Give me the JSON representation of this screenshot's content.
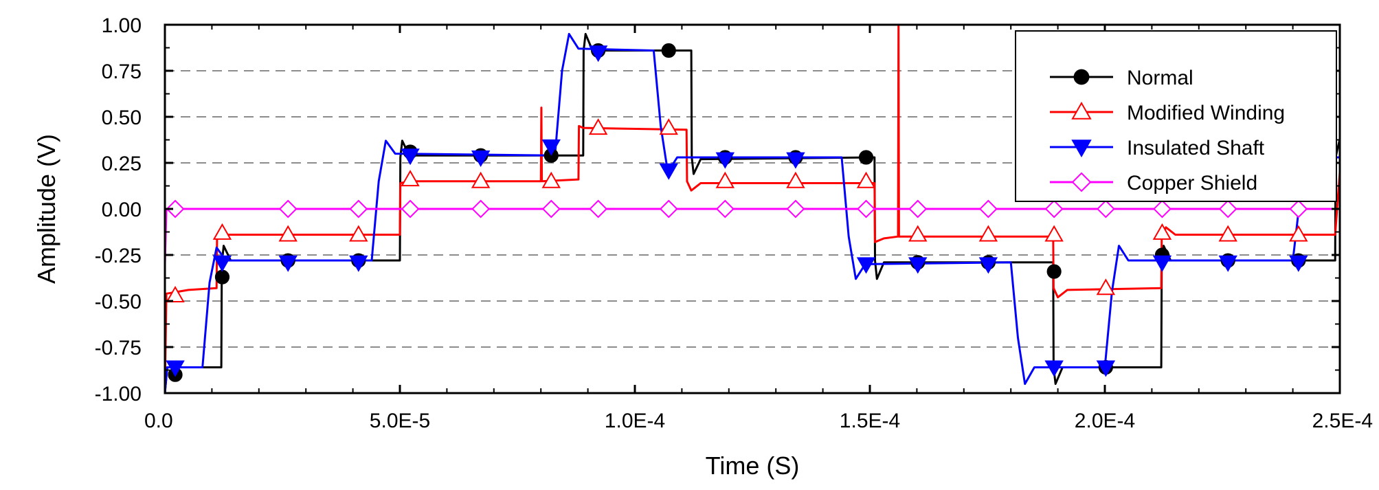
{
  "chart_data": {
    "type": "line",
    "title": "",
    "xlabel": "Time (S)",
    "ylabel": "Amplitude (V)",
    "xlim": [
      0,
      0.00025
    ],
    "ylim": [
      -1.0,
      1.0
    ],
    "x_ticks": [
      {
        "value": 0,
        "label": "0.0"
      },
      {
        "value": 5e-05,
        "label": "5.0E-5"
      },
      {
        "value": 0.0001,
        "label": "1.0E-4"
      },
      {
        "value": 0.00015,
        "label": "1.5E-4"
      },
      {
        "value": 0.0002,
        "label": "2.0E-4"
      },
      {
        "value": 0.00025,
        "label": "2.5E-4"
      }
    ],
    "y_ticks": [
      {
        "value": 1.0,
        "label": "1.00"
      },
      {
        "value": 0.75,
        "label": "0.75"
      },
      {
        "value": 0.5,
        "label": "0.50"
      },
      {
        "value": 0.25,
        "label": "0.25"
      },
      {
        "value": 0.0,
        "label": "0.00"
      },
      {
        "value": -0.25,
        "label": "-0.25"
      },
      {
        "value": -0.5,
        "label": "-0.50"
      },
      {
        "value": -0.75,
        "label": "-0.75"
      },
      {
        "value": -1.0,
        "label": "-1.00"
      }
    ],
    "grid": "horizontal dashed",
    "legend_position": "top-right",
    "series": [
      {
        "name": "Normal",
        "color": "#000000",
        "marker": "circle",
        "points": [
          [
            0,
            -1.0
          ],
          [
            5e-07,
            -0.86
          ],
          [
            1.2e-05,
            -0.86
          ],
          [
            1.21e-05,
            -0.3
          ],
          [
            1.25e-05,
            -0.2
          ],
          [
            1.4e-05,
            -0.28
          ],
          [
            5e-05,
            -0.28
          ],
          [
            5.01e-05,
            0.28
          ],
          [
            5.05e-05,
            0.37
          ],
          [
            5.2e-05,
            0.29
          ],
          [
            8.9e-05,
            0.29
          ],
          [
            8.91e-05,
            0.86
          ],
          [
            8.95e-05,
            0.95
          ],
          [
            9.1e-05,
            0.86
          ],
          [
            0.000112,
            0.86
          ],
          [
            0.0001121,
            0.28
          ],
          [
            0.0001125,
            0.19
          ],
          [
            0.000114,
            0.27
          ],
          [
            0.000151,
            0.28
          ],
          [
            0.0001511,
            -0.28
          ],
          [
            0.0001515,
            -0.38
          ],
          [
            0.000153,
            -0.29
          ],
          [
            0.000189,
            -0.29
          ],
          [
            0.0001891,
            -0.86
          ],
          [
            0.0001895,
            -0.95
          ],
          [
            0.000191,
            -0.86
          ],
          [
            0.000212,
            -0.86
          ],
          [
            0.0002121,
            -0.28
          ],
          [
            0.0002125,
            -0.2
          ],
          [
            0.000214,
            -0.28
          ],
          [
            0.000249,
            -0.28
          ],
          [
            0.0002491,
            0.28
          ],
          [
            0.00025,
            0.38
          ]
        ],
        "markers": [
          [
            2.2e-06,
            -0.9
          ],
          [
            1.22e-05,
            -0.37
          ],
          [
            2.62e-05,
            -0.28
          ],
          [
            4.12e-05,
            -0.28
          ],
          [
            5.22e-05,
            0.31
          ],
          [
            6.72e-05,
            0.29
          ],
          [
            8.22e-05,
            0.29
          ],
          [
            9.22e-05,
            0.86
          ],
          [
            0.0001072,
            0.86
          ],
          [
            0.0001192,
            0.28
          ],
          [
            0.0001342,
            0.28
          ],
          [
            0.0001492,
            0.28
          ],
          [
            0.0001602,
            -0.29
          ],
          [
            0.0001752,
            -0.29
          ],
          [
            0.0001892,
            -0.34
          ],
          [
            0.0002002,
            -0.86
          ],
          [
            0.0002122,
            -0.25
          ],
          [
            0.0002262,
            -0.28
          ],
          [
            0.0002412,
            -0.28
          ]
        ]
      },
      {
        "name": "Modified Winding",
        "color": "#ff0000",
        "marker": "triangle-up-open",
        "points": [
          [
            0,
            -1.0
          ],
          [
            3e-07,
            -0.46
          ],
          [
            5e-06,
            -0.44
          ],
          [
            1.1e-05,
            -0.43
          ],
          [
            1.11e-05,
            -0.15
          ],
          [
            1.2e-05,
            -0.14
          ],
          [
            5e-05,
            -0.14
          ],
          [
            5.01e-05,
            0.14
          ],
          [
            5.2e-05,
            0.15
          ],
          [
            8e-05,
            0.15
          ],
          [
            8.01e-05,
            0.55
          ],
          [
            8.02e-05,
            0.15
          ],
          [
            8.8e-05,
            0.16
          ],
          [
            8.81e-05,
            0.45
          ],
          [
            8.9e-05,
            0.44
          ],
          [
            0.000111,
            0.43
          ],
          [
            0.0001111,
            0.15
          ],
          [
            0.000112,
            0.1
          ],
          [
            0.000114,
            0.14
          ],
          [
            0.000151,
            0.14
          ],
          [
            0.0001511,
            -0.18
          ],
          [
            0.000153,
            -0.16
          ],
          [
            0.000156,
            -0.15
          ],
          [
            0.0001561,
            1.0
          ],
          [
            0.0001562,
            -0.15
          ],
          [
            0.000189,
            -0.15
          ],
          [
            0.0001891,
            -0.43
          ],
          [
            0.00019,
            -0.48
          ],
          [
            0.000192,
            -0.44
          ],
          [
            0.000212,
            -0.43
          ],
          [
            0.0002121,
            -0.15
          ],
          [
            0.000213,
            -0.1
          ],
          [
            0.000215,
            -0.14
          ],
          [
            0.000249,
            -0.14
          ],
          [
            0.00025,
            0.2
          ]
        ],
        "markers": [
          [
            2.2e-06,
            -0.47
          ],
          [
            1.22e-05,
            -0.13
          ],
          [
            2.62e-05,
            -0.14
          ],
          [
            4.12e-05,
            -0.14
          ],
          [
            5.22e-05,
            0.16
          ],
          [
            6.72e-05,
            0.15
          ],
          [
            8.22e-05,
            0.15
          ],
          [
            9.22e-05,
            0.44
          ],
          [
            0.0001072,
            0.44
          ],
          [
            0.0001192,
            0.15
          ],
          [
            0.0001342,
            0.15
          ],
          [
            0.0001492,
            0.15
          ],
          [
            0.0001602,
            -0.14
          ],
          [
            0.0001752,
            -0.14
          ],
          [
            0.0001892,
            -0.14
          ],
          [
            0.0002002,
            -0.43
          ],
          [
            0.0002122,
            -0.13
          ],
          [
            0.0002262,
            -0.14
          ],
          [
            0.0002412,
            -0.14
          ]
        ]
      },
      {
        "name": "Insulated Shaft",
        "color": "#0000ff",
        "marker": "triangle-down-filled",
        "points": [
          [
            0,
            -1.0
          ],
          [
            5e-07,
            -0.86
          ],
          [
            8e-06,
            -0.86
          ],
          [
            9.5e-06,
            -0.4
          ],
          [
            1.1e-05,
            -0.21
          ],
          [
            1.3e-05,
            -0.28
          ],
          [
            4.4e-05,
            -0.28
          ],
          [
            4.55e-05,
            0.15
          ],
          [
            4.7e-05,
            0.37
          ],
          [
            4.9e-05,
            0.3
          ],
          [
            8.3e-05,
            0.29
          ],
          [
            8.45e-05,
            0.75
          ],
          [
            8.6e-05,
            0.95
          ],
          [
            8.8e-05,
            0.87
          ],
          [
            0.000104,
            0.86
          ],
          [
            0.0001055,
            0.45
          ],
          [
            0.000107,
            0.2
          ],
          [
            0.000109,
            0.28
          ],
          [
            0.000144,
            0.28
          ],
          [
            0.0001455,
            -0.15
          ],
          [
            0.000147,
            -0.38
          ],
          [
            0.000149,
            -0.3
          ],
          [
            0.00018,
            -0.29
          ],
          [
            0.0001815,
            -0.7
          ],
          [
            0.000183,
            -0.95
          ],
          [
            0.000185,
            -0.86
          ],
          [
            0.0002,
            -0.86
          ],
          [
            0.0002015,
            -0.45
          ],
          [
            0.000203,
            -0.2
          ],
          [
            0.000205,
            -0.28
          ],
          [
            0.00024,
            -0.28
          ],
          [
            0.0002415,
            0.05
          ],
          [
            0.000243,
            0.15
          ],
          [
            0.000247,
            0.28
          ],
          [
            0.00025,
            0.28
          ]
        ],
        "markers": [
          [
            2.2e-06,
            -0.86
          ],
          [
            1.22e-05,
            -0.29
          ],
          [
            2.62e-05,
            -0.29
          ],
          [
            4.12e-05,
            -0.29
          ],
          [
            5.22e-05,
            0.29
          ],
          [
            6.72e-05,
            0.28
          ],
          [
            8.22e-05,
            0.34
          ],
          [
            9.22e-05,
            0.85
          ],
          [
            0.0001072,
            0.21
          ],
          [
            0.0001192,
            0.27
          ],
          [
            0.0001342,
            0.27
          ],
          [
            0.0001492,
            -0.3
          ],
          [
            0.0001602,
            -0.3
          ],
          [
            0.0001752,
            -0.3
          ],
          [
            0.0001892,
            -0.86
          ],
          [
            0.0002002,
            -0.86
          ],
          [
            0.0002122,
            -0.29
          ],
          [
            0.0002262,
            -0.29
          ],
          [
            0.0002412,
            -0.29
          ]
        ]
      },
      {
        "name": "Copper Shield",
        "color": "#ff00ff",
        "marker": "diamond-open",
        "points": [
          [
            0,
            -0.3
          ],
          [
            3e-07,
            0.0
          ],
          [
            0.00025,
            0.0
          ]
        ],
        "markers": [
          [
            2.2e-06,
            0.0
          ],
          [
            2.62e-05,
            0.0
          ],
          [
            4.12e-05,
            0.0
          ],
          [
            5.22e-05,
            0.0
          ],
          [
            6.72e-05,
            0.0
          ],
          [
            8.22e-05,
            0.0
          ],
          [
            9.22e-05,
            0.0
          ],
          [
            0.0001072,
            0.0
          ],
          [
            0.0001192,
            0.0
          ],
          [
            0.0001342,
            0.0
          ],
          [
            0.0001492,
            0.0
          ],
          [
            0.0001602,
            0.0
          ],
          [
            0.0001752,
            0.0
          ],
          [
            0.0001892,
            0.0
          ],
          [
            0.0002002,
            0.0
          ],
          [
            0.0002122,
            0.0
          ],
          [
            0.0002262,
            0.0
          ],
          [
            0.0002412,
            0.0
          ]
        ]
      }
    ]
  }
}
